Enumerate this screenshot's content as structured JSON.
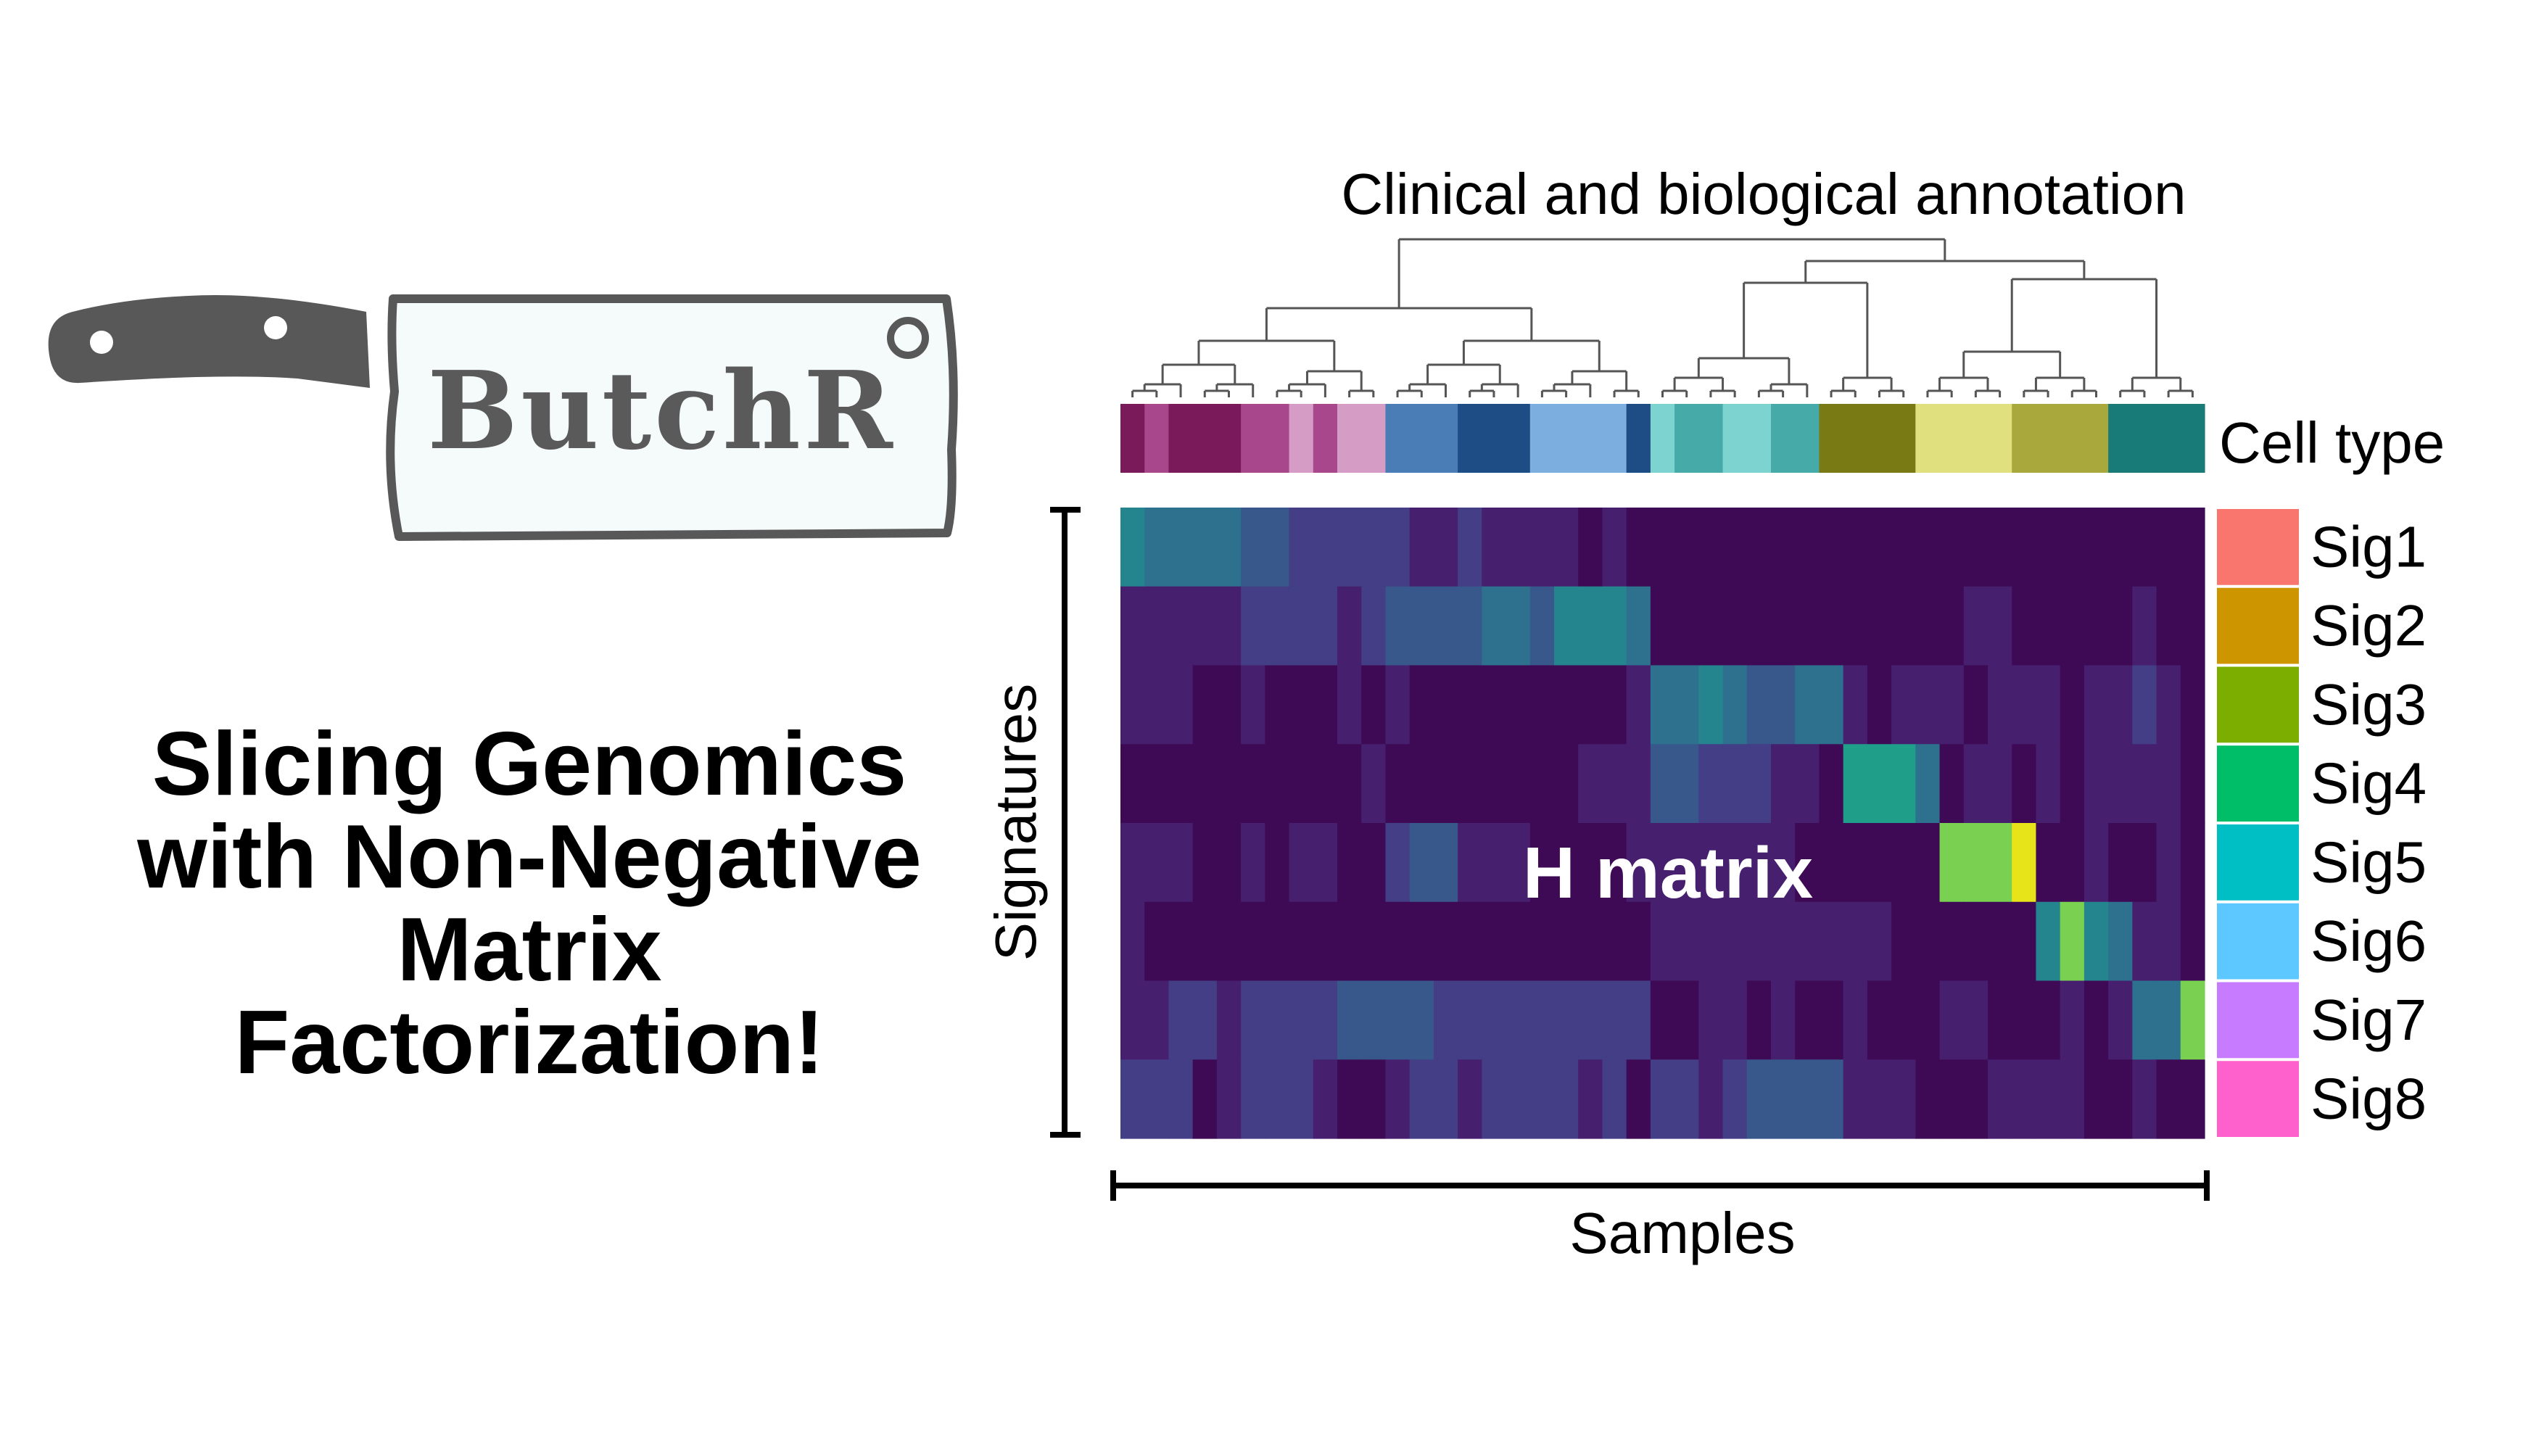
{
  "logo": {
    "text": "ButchR"
  },
  "tagline": {
    "lines": [
      "Slicing Genomics",
      "with Non-Negative",
      "Matrix",
      "Factorization!"
    ]
  },
  "figure": {
    "annotation_title": "Clinical and biological annotation",
    "cell_type_label": "Cell type",
    "x_axis_label": "Samples",
    "y_axis_label": "Signatures",
    "matrix_label": "H matrix",
    "signatures": [
      {
        "name": "Sig1",
        "color": "#F8766D"
      },
      {
        "name": "Sig2",
        "color": "#CD9600"
      },
      {
        "name": "Sig3",
        "color": "#7CAE00"
      },
      {
        "name": "Sig4",
        "color": "#00BE67"
      },
      {
        "name": "Sig5",
        "color": "#00BFC4"
      },
      {
        "name": "Sig6",
        "color": "#5DC8FF"
      },
      {
        "name": "Sig7",
        "color": "#C77CFF"
      },
      {
        "name": "Sig8",
        "color": "#FF61CC"
      }
    ],
    "cell_type_colors": [
      "#7A1A5A",
      "#A8478C",
      "#7A1A5A",
      "#7A1A5A",
      "#7A1A5A",
      "#A8478C",
      "#A8478C",
      "#D59CC5",
      "#A8478C",
      "#D59CC5",
      "#D59CC5",
      "#4A7DB5",
      "#4A7DB5",
      "#4A7DB5",
      "#1E4C84",
      "#1E4C84",
      "#1E4C84",
      "#7CAEE0",
      "#7CAEE0",
      "#7CAEE0",
      "#7CAEE0",
      "#1E4C84",
      "#7DD3D0",
      "#45AAA8",
      "#45AAA8",
      "#7DD3D0",
      "#7DD3D0",
      "#45AAA8",
      "#45AAA8",
      "#7A7A14",
      "#7A7A14",
      "#7A7A14",
      "#7A7A14",
      "#E0E07E",
      "#E0E07E",
      "#E0E07E",
      "#E0E07E",
      "#A8A83C",
      "#A8A83C",
      "#A8A83C",
      "#A8A83C",
      "#197B78",
      "#197B78",
      "#197B78",
      "#197B78"
    ],
    "h_matrix": [
      [
        5,
        4,
        4,
        4,
        4,
        3,
        3,
        2,
        2,
        2,
        2,
        2,
        1,
        1,
        2,
        1,
        1,
        1,
        1,
        0,
        1,
        0,
        0,
        0,
        0,
        0,
        0,
        0,
        0,
        0,
        0,
        0,
        0,
        0,
        0,
        0,
        0,
        0,
        0,
        0,
        0,
        0,
        0,
        0,
        0
      ],
      [
        1,
        1,
        1,
        1,
        1,
        2,
        2,
        2,
        2,
        1,
        2,
        3,
        3,
        3,
        3,
        4,
        4,
        3,
        5,
        5,
        5,
        4,
        0,
        0,
        0,
        0,
        0,
        0,
        0,
        0,
        0,
        0,
        0,
        0,
        0,
        1,
        1,
        0,
        0,
        0,
        0,
        0,
        1,
        0,
        0
      ],
      [
        1,
        1,
        1,
        0,
        0,
        1,
        0,
        0,
        0,
        1,
        0,
        1,
        0,
        0,
        0,
        0,
        0,
        0,
        0,
        0,
        0,
        1,
        4,
        4,
        5,
        4,
        3,
        3,
        4,
        4,
        1,
        0,
        1,
        1,
        1,
        0,
        1,
        1,
        1,
        0,
        1,
        1,
        2,
        1,
        0
      ],
      [
        0,
        0,
        0,
        0,
        0,
        0,
        0,
        0,
        0,
        0,
        1,
        0,
        0,
        0,
        0,
        0,
        0,
        0,
        0,
        1,
        1,
        1,
        3,
        3,
        2,
        2,
        2,
        1,
        1,
        0,
        6,
        6,
        6,
        4,
        0,
        1,
        1,
        0,
        1,
        0,
        1,
        1,
        1,
        1,
        0
      ],
      [
        1,
        1,
        1,
        0,
        0,
        1,
        0,
        1,
        1,
        0,
        0,
        2,
        3,
        3,
        1,
        1,
        1,
        0,
        0,
        0,
        0,
        1,
        1,
        1,
        1,
        1,
        1,
        1,
        0,
        0,
        0,
        0,
        0,
        0,
        8,
        8,
        8,
        9,
        0,
        0,
        1,
        0,
        0,
        1,
        0
      ],
      [
        1,
        0,
        0,
        0,
        0,
        0,
        0,
        0,
        0,
        0,
        0,
        0,
        0,
        0,
        0,
        0,
        0,
        0,
        0,
        0,
        0,
        0,
        1,
        1,
        1,
        1,
        1,
        1,
        1,
        1,
        1,
        1,
        0,
        0,
        0,
        0,
        0,
        0,
        5,
        8,
        5,
        4,
        1,
        1,
        0
      ],
      [
        1,
        1,
        2,
        2,
        1,
        2,
        2,
        2,
        2,
        3,
        3,
        3,
        3,
        2,
        2,
        2,
        2,
        2,
        2,
        2,
        2,
        2,
        0,
        0,
        1,
        1,
        0,
        1,
        0,
        0,
        1,
        0,
        0,
        0,
        1,
        1,
        0,
        0,
        0,
        1,
        0,
        1,
        4,
        4,
        8
      ],
      [
        2,
        2,
        2,
        0,
        1,
        2,
        2,
        2,
        1,
        0,
        0,
        1,
        2,
        2,
        1,
        2,
        2,
        2,
        2,
        1,
        2,
        0,
        2,
        2,
        1,
        2,
        3,
        3,
        3,
        3,
        1,
        1,
        1,
        0,
        0,
        0,
        1,
        1,
        1,
        1,
        0,
        0,
        1,
        0,
        0
      ]
    ]
  }
}
